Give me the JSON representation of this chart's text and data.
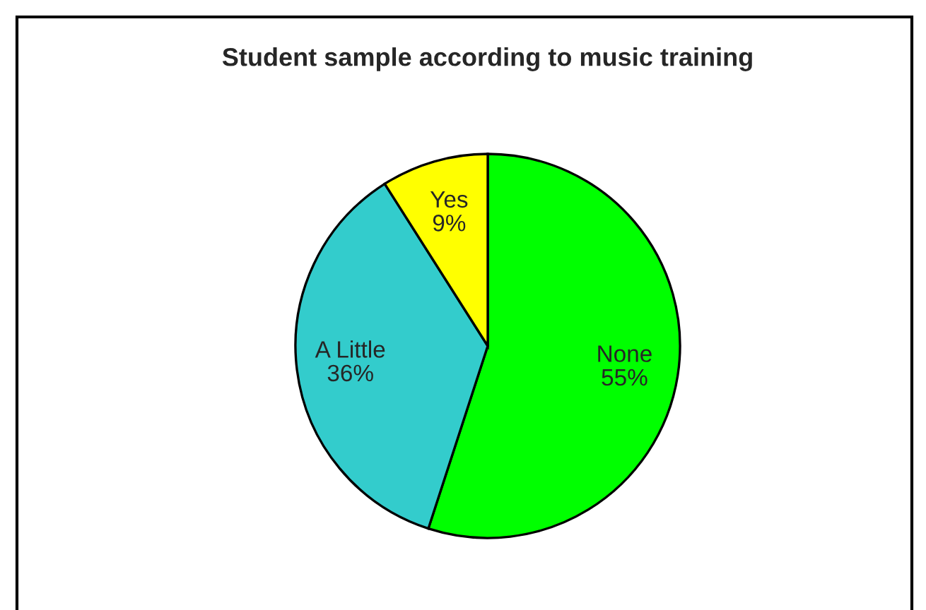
{
  "chart_data": {
    "type": "pie",
    "title": "Student sample according to music training",
    "categories": [
      "None",
      "A Little",
      "Yes"
    ],
    "values": [
      55,
      36,
      9
    ],
    "value_labels": [
      "55%",
      "36%",
      "9%"
    ],
    "colors": [
      "#00ff00",
      "#33cccc",
      "#ffff00"
    ],
    "legend": false
  }
}
